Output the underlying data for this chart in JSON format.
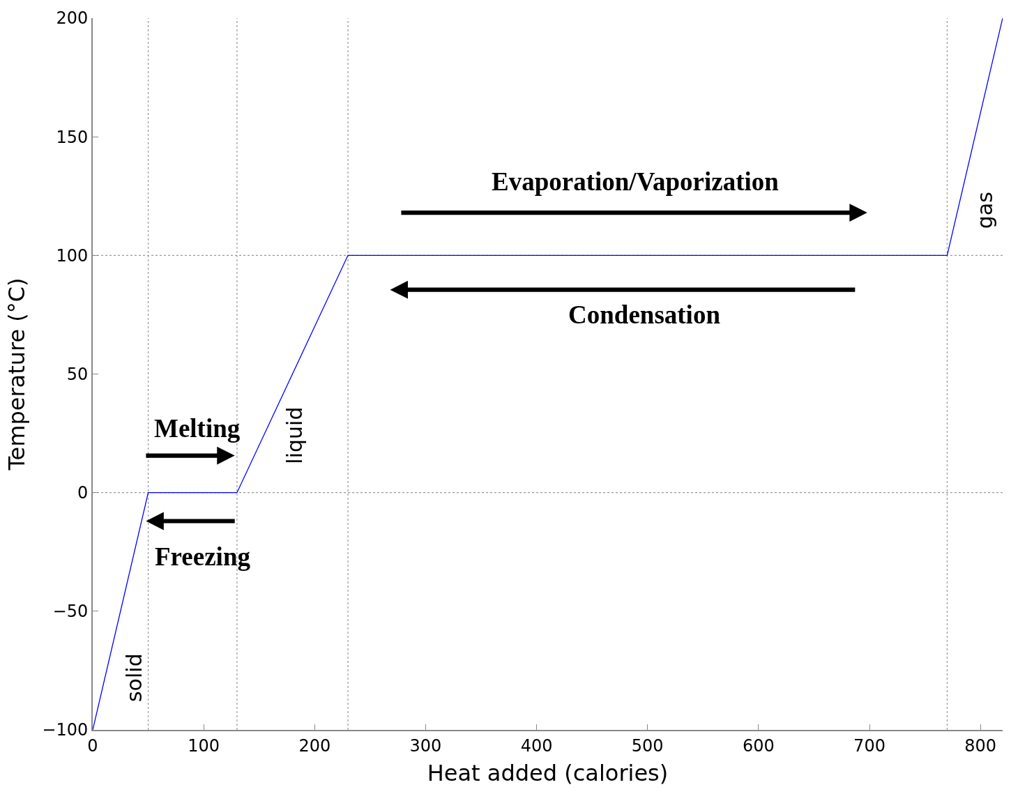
{
  "chart_data": {
    "type": "line",
    "xlabel": "Heat added (calories)",
    "ylabel": "Temperature (°C)",
    "x": [
      0,
      50,
      130,
      230,
      770,
      820
    ],
    "series": [
      {
        "color": "#0000ff",
        "values": [
          -100,
          0,
          0,
          100,
          100,
          200
        ]
      }
    ],
    "xlim": [
      0,
      820
    ],
    "ylim": [
      -100,
      200
    ],
    "xticks": [
      0,
      100,
      200,
      300,
      400,
      500,
      600,
      700,
      800
    ],
    "yticks": [
      -100,
      -50,
      0,
      50,
      100,
      150,
      200
    ],
    "grid": false,
    "legend": false,
    "marker": "none",
    "line_style": "solid",
    "ref_lines": [
      {
        "axis": "x",
        "value": 50,
        "color": "#999999",
        "line_style": "dotted"
      },
      {
        "axis": "x",
        "value": 130,
        "color": "#999999",
        "line_style": "dotted"
      },
      {
        "axis": "x",
        "value": 230,
        "color": "#999999",
        "line_style": "dotted"
      },
      {
        "axis": "x",
        "value": 770,
        "color": "#999999",
        "line_style": "dotted"
      },
      {
        "axis": "y",
        "value": 0,
        "color": "#999999",
        "line_style": "dotted"
      },
      {
        "axis": "y",
        "value": 100,
        "color": "#999999",
        "line_style": "dotted"
      }
    ],
    "annotations": [
      "Evaporation/Vaporization",
      "Condensation",
      "Melting",
      "Freezing",
      "solid",
      "liquid",
      "gas"
    ]
  }
}
